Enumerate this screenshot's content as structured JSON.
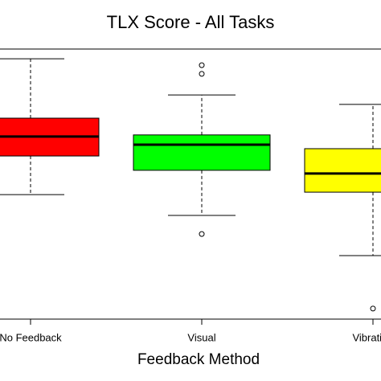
{
  "chart_data": {
    "type": "boxplot",
    "title": "TLX Score - All Tasks",
    "x_label": "Feedback Method",
    "categories": [
      "No Feedback",
      "Visual",
      "Vibration"
    ],
    "colors": [
      "#ff0000",
      "#00ff00",
      "#ffff00"
    ],
    "boxes": [
      {
        "min": 46.1,
        "q1": 60.4,
        "median": 67.6,
        "q3": 74.4,
        "max": 96.4,
        "outliers": []
      },
      {
        "min": 38.4,
        "q1": 55.1,
        "median": 64.6,
        "q3": 68.2,
        "max": 83.0,
        "outliers": [
          94.0,
          90.8,
          31.5
        ]
      },
      {
        "min": 23.5,
        "q1": 47.0,
        "median": 53.9,
        "q3": 63.1,
        "max": 79.5,
        "outliers": [
          3.9
        ]
      }
    ],
    "ylim": [
      0,
      100
    ]
  }
}
